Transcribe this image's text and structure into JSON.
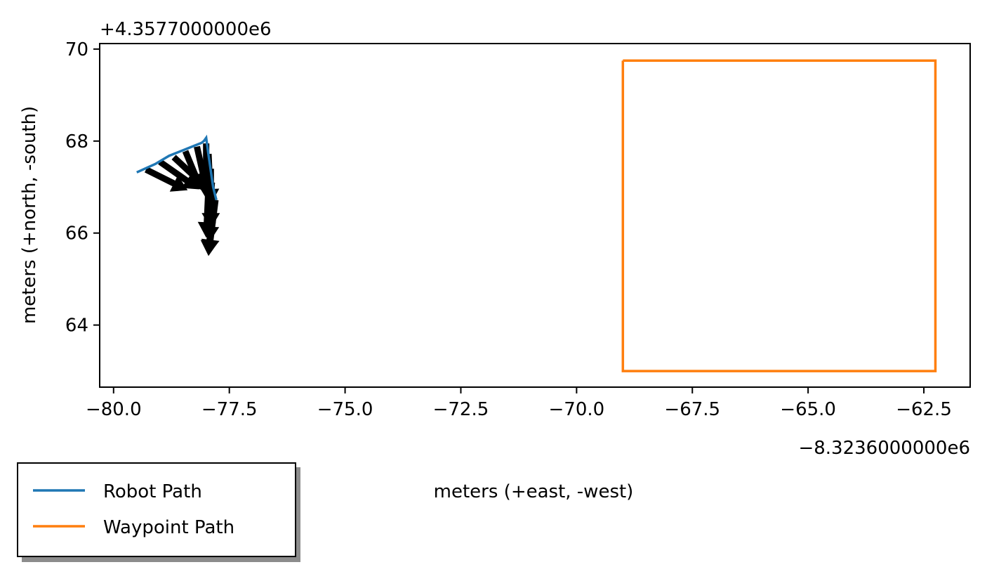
{
  "chart_data": {
    "type": "line",
    "title": "",
    "xlabel": "meters (+east, -west)",
    "ylabel": "meters (+north, -south)",
    "x_offset_label": "−8.3236000000e6",
    "y_offset_label": "+4.3577000000e6",
    "xlim": [
      -80.3,
      -61.5
    ],
    "ylim": [
      62.65,
      70.12
    ],
    "x_ticks": [
      -80.0,
      -77.5,
      -75.0,
      -72.5,
      -70.0,
      -67.5,
      -65.0,
      -62.5
    ],
    "x_tick_labels": [
      "−80.0",
      "−77.5",
      "−75.0",
      "−72.5",
      "−70.0",
      "−67.5",
      "−65.0",
      "−62.5"
    ],
    "y_ticks": [
      64,
      66,
      68,
      70
    ],
    "y_tick_labels": [
      "64",
      "66",
      "68",
      "70"
    ],
    "grid": false,
    "legend_placement": "bottom-left, outside plot",
    "series": [
      {
        "name": "Robot Path",
        "color": "#1f77b4",
        "x": [
          -79.5,
          -79.1,
          -78.8,
          -78.5,
          -78.25,
          -78.1,
          -78.05,
          -78.0,
          -77.95,
          -77.9,
          -77.85,
          -77.78
        ],
        "y": [
          67.32,
          67.5,
          67.68,
          67.8,
          67.9,
          67.96,
          68.0,
          68.07,
          67.7,
          67.35,
          67.0,
          66.72
        ]
      },
      {
        "name": "Waypoint Path",
        "color": "#ff7f0e",
        "x": [
          -69.0,
          -62.25,
          -62.25,
          -69.0,
          -69.0
        ],
        "y": [
          69.75,
          69.75,
          63.0,
          63.0,
          69.75
        ]
      }
    ],
    "arrows": {
      "color": "#000000",
      "x": [
        -79.3,
        -79.0,
        -78.7,
        -78.45,
        -78.2,
        -78.0,
        -77.95,
        -77.9,
        -77.88,
        -77.85,
        -77.8,
        -77.95
      ],
      "y": [
        67.38,
        67.55,
        67.65,
        67.78,
        67.88,
        67.95,
        67.72,
        67.4,
        67.1,
        66.85,
        66.72,
        67.0
      ],
      "u": [
        0.9,
        0.85,
        0.8,
        0.35,
        0.2,
        0.0,
        0.05,
        0.0,
        -0.05,
        -0.1,
        -0.15,
        -0.05
      ],
      "v": [
        -0.45,
        -0.6,
        -0.75,
        -0.85,
        -0.9,
        -1.2,
        -1.1,
        -1.3,
        -1.3,
        -1.35,
        -1.2,
        -1.1
      ]
    }
  }
}
